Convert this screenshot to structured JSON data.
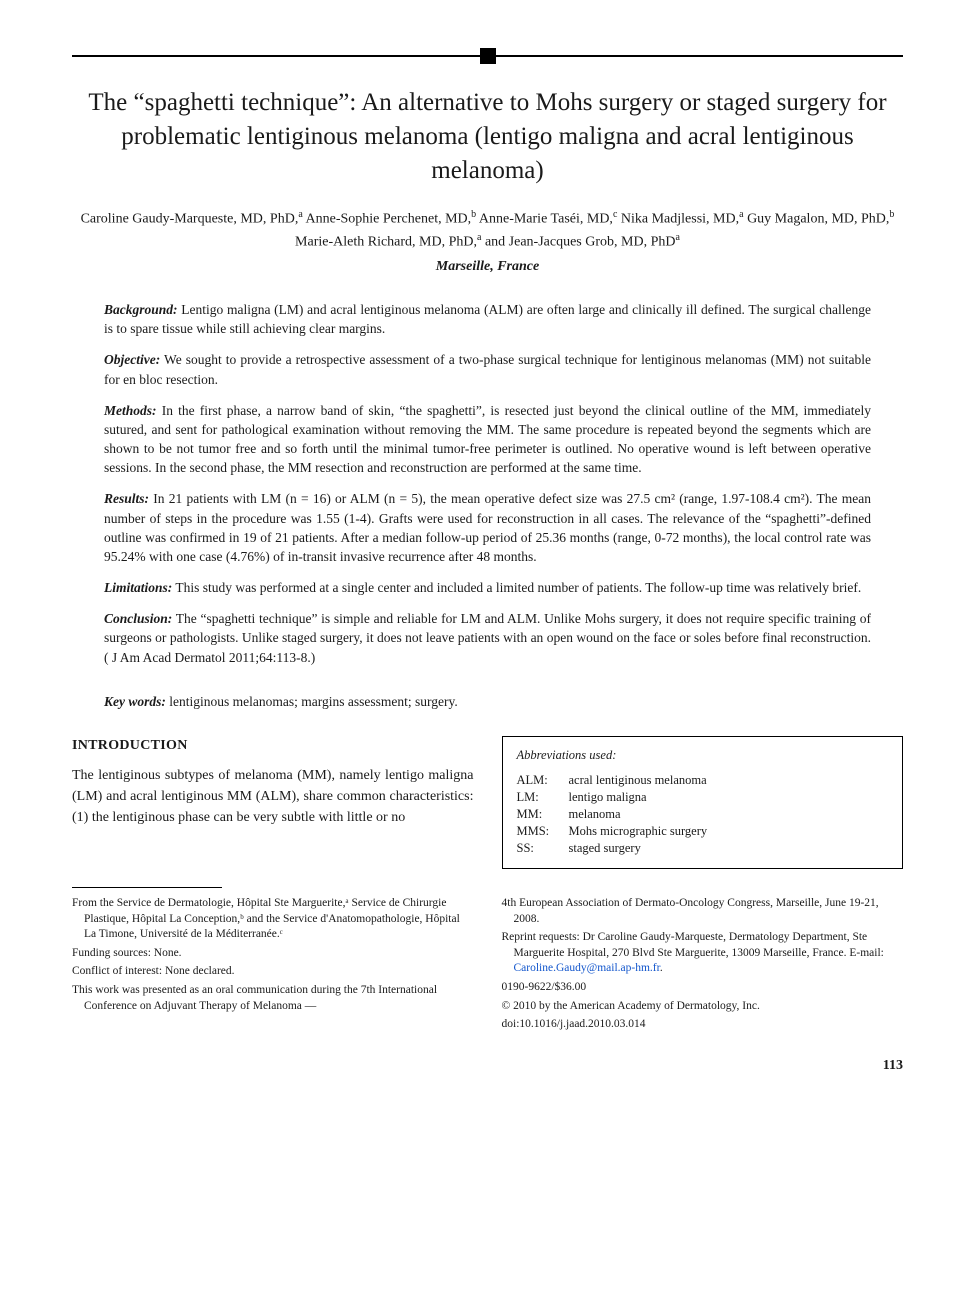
{
  "title": "The “spaghetti technique”: An alternative to Mohs surgery or staged surgery for problematic lentiginous melanoma (lentigo maligna and acral lentiginous melanoma)",
  "authors_html": "Caroline Gaudy-Marqueste, MD, PhD,<sup>a</sup> Anne-Sophie Perchenet, MD,<sup>b</sup> Anne-Marie Taséi, MD,<sup>c</sup> Nika Madjlessi, MD,<sup>a</sup> Guy Magalon, MD, PhD,<sup>b</sup> Marie-Aleth Richard, MD, PhD,<sup>a</sup> and Jean-Jacques Grob, MD, PhD<sup>a</sup>",
  "location": "Marseille, France",
  "abstract": {
    "background": {
      "label": "Background:",
      "text": "Lentigo maligna (LM) and acral lentiginous melanoma (ALM) are often large and clinically ill defined. The surgical challenge is to spare tissue while still achieving clear margins."
    },
    "objective": {
      "label": "Objective:",
      "text": "We sought to provide a retrospective assessment of a two-phase surgical technique for lentiginous melanomas (MM) not suitable for en bloc resection."
    },
    "methods": {
      "label": "Methods:",
      "text": "In the first phase, a narrow band of skin, “the spaghetti”, is resected just beyond the clinical outline of the MM, immediately sutured, and sent for pathological examination without removing the MM. The same procedure is repeated beyond the segments which are shown to be not tumor free and so forth until the minimal tumor-free perimeter is outlined. No operative wound is left between operative sessions. In the second phase, the MM resection and reconstruction are performed at the same time."
    },
    "results": {
      "label": "Results:",
      "text": "In 21 patients with LM (n = 16) or ALM (n = 5), the mean operative defect size was 27.5 cm² (range, 1.97-108.4 cm²). The mean number of steps in the procedure was 1.55 (1-4). Grafts were used for reconstruction in all cases. The relevance of the “spaghetti”-defined outline was confirmed in 19 of 21 patients. After a median follow-up period of 25.36 months (range, 0-72 months), the local control rate was 95.24% with one case (4.76%) of in-transit invasive recurrence after 48 months."
    },
    "limitations": {
      "label": "Limitations:",
      "text": "This study was performed at a single center and included a limited number of patients. The follow-up time was relatively brief."
    },
    "conclusion": {
      "label": "Conclusion:",
      "text": "The “spaghetti technique” is simple and reliable for LM and ALM. Unlike Mohs surgery, it does not require specific training of surgeons or pathologists. Unlike staged surgery, it does not leave patients with an open wound on the face or soles before final reconstruction. ( J Am Acad Dermatol 2011;64:113-8.)"
    }
  },
  "keywords": {
    "label": "Key words:",
    "text": "lentiginous melanomas; margins assessment; surgery."
  },
  "introduction": {
    "heading": "INTRODUCTION",
    "text": "The lentiginous subtypes of melanoma (MM), namely lentigo maligna (LM) and acral lentiginous MM (ALM), share common characteristics: (1) the lentiginous phase can be very subtle with little or no"
  },
  "abbreviations": {
    "heading": "Abbreviations used:",
    "items": [
      {
        "abbr": "ALM:",
        "def": "acral lentiginous melanoma"
      },
      {
        "abbr": "LM:",
        "def": "lentigo maligna"
      },
      {
        "abbr": "MM:",
        "def": "melanoma"
      },
      {
        "abbr": "MMS:",
        "def": "Mohs micrographic surgery"
      },
      {
        "abbr": "SS:",
        "def": "staged surgery"
      }
    ]
  },
  "footnotes": {
    "left": [
      "From the Service de Dermatologie, Hôpital Ste Marguerite,ᵃ Service de Chirurgie Plastique, Hôpital La Conception,ᵇ and the Service d'Anatomopathologie, Hôpital La Timone, Université de la Méditerranée.ᶜ",
      "Funding sources: None.",
      "Conflict of interest: None declared.",
      "This work was presented as an oral communication during the 7th International Conference on Adjuvant Therapy of Melanoma —"
    ],
    "right": [
      "4th European Association of Dermato-Oncology Congress, Marseille, June 19-21, 2008.",
      "Reprint requests: Dr Caroline Gaudy-Marqueste, Dermatology Department, Ste Marguerite Hospital, 270 Blvd Ste Marguerite, 13009 Marseille, France. E-mail: ",
      "0190-9622/$36.00",
      "© 2010 by the American Academy of Dermatology, Inc.",
      "doi:10.1016/j.jaad.2010.03.014"
    ],
    "email": "Caroline.Gaudy@mail.ap-hm.fr"
  },
  "page_number": "113"
}
